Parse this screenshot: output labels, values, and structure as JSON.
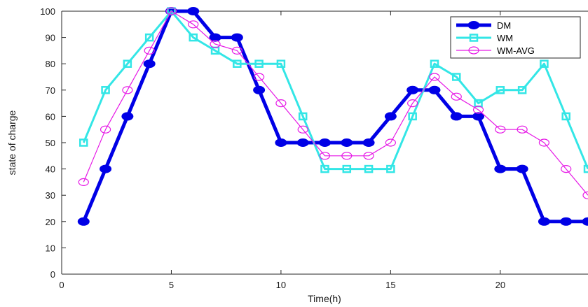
{
  "chart_data": {
    "type": "line",
    "title": "",
    "xlabel": "Time(h)",
    "ylabel": "state of charge",
    "xlim": [
      0,
      24
    ],
    "ylim": [
      0,
      100
    ],
    "xticks": [
      0,
      5,
      10,
      15,
      20
    ],
    "yticks": [
      0,
      10,
      20,
      30,
      40,
      50,
      60,
      70,
      80,
      90,
      100
    ],
    "grid": false,
    "legend_position": "top-right",
    "x": [
      1,
      2,
      3,
      4,
      5,
      6,
      7,
      8,
      9,
      10,
      11,
      12,
      13,
      14,
      15,
      16,
      17,
      18,
      19,
      20,
      21,
      22,
      23,
      24
    ],
    "series": [
      {
        "name": "DM",
        "color": "#0000e6",
        "marker": "filled-circle",
        "values": [
          20,
          40,
          60,
          80,
          100,
          100,
          90,
          90,
          70,
          50,
          50,
          50,
          50,
          50,
          60,
          70,
          70,
          60,
          60,
          40,
          40,
          20,
          20,
          20
        ]
      },
      {
        "name": "WM",
        "color": "#33e6e6",
        "marker": "square",
        "values": [
          50,
          70,
          80,
          90,
          100,
          90,
          85,
          80,
          80,
          80,
          60,
          40,
          40,
          40,
          40,
          60,
          80,
          75,
          65,
          70,
          70,
          80,
          60,
          40
        ]
      },
      {
        "name": "WM-AVG",
        "color": "#e619e6",
        "marker": "open-circle",
        "values": [
          35,
          55,
          70,
          85,
          100,
          95,
          87.5,
          85,
          75,
          65,
          55,
          45,
          45,
          45,
          50,
          65,
          75,
          67.5,
          62.5,
          55,
          55,
          50,
          40,
          30
        ]
      }
    ]
  }
}
